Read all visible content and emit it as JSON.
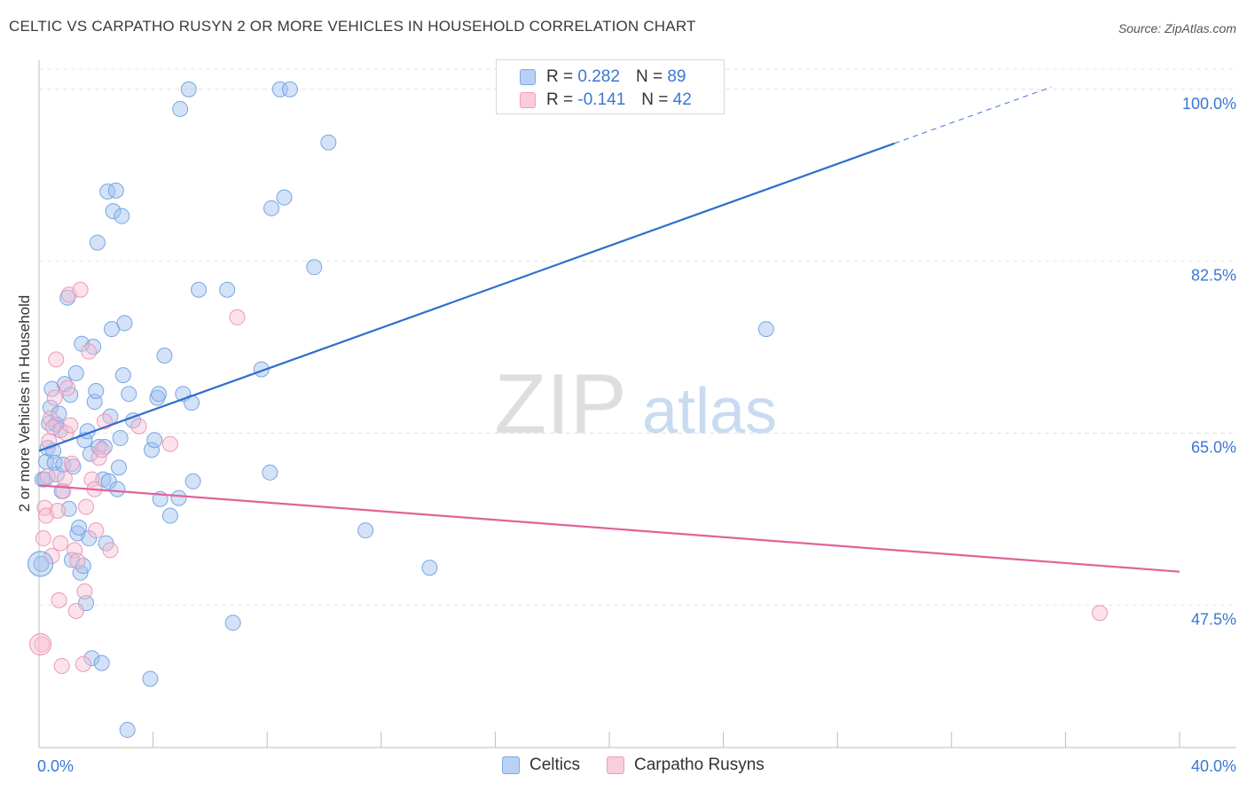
{
  "chart_data": {
    "type": "scatter",
    "title": "CELTIC VS CARPATHO RUSYN 2 OR MORE VEHICLES IN HOUSEHOLD CORRELATION CHART",
    "source": "Source: ZipAtlas.com",
    "xlabel": "",
    "ylabel": "2 or more Vehicles in Household",
    "xlim": [
      0,
      40
    ],
    "ylim": [
      33,
      103.5
    ],
    "x_tick_labels": [
      "0.0%",
      "40.0%"
    ],
    "y_ticks": [
      {
        "value": 100,
        "label": "100.0%"
      },
      {
        "value": 82.5,
        "label": "82.5%"
      },
      {
        "value": 65,
        "label": "65.0%"
      },
      {
        "value": 47.5,
        "label": "47.5%"
      }
    ],
    "watermark": {
      "zip": "ZIP",
      "atlas": "atlas"
    },
    "legend_stats": [
      {
        "r_label": "R =",
        "r_value": "0.282",
        "n_label": "N =",
        "n_value": "89"
      },
      {
        "r_label": "R =",
        "r_value": "-0.141",
        "n_label": "N =",
        "n_value": "42"
      }
    ],
    "series": [
      {
        "name": "Celtics",
        "color": "#9dbfee",
        "stroke": "#6d9ee0",
        "trend": {
          "x0": 0,
          "y0": 63.2,
          "x1": 30,
          "y1": 94.5,
          "dash_to_x": 35.5,
          "color": "#2f6fcc"
        },
        "points": [
          [
            0.08,
            51.7
          ],
          [
            0.12,
            60.3
          ],
          [
            0.2,
            60.3
          ],
          [
            0.25,
            62.1
          ],
          [
            0.3,
            63.5
          ],
          [
            0.35,
            66
          ],
          [
            0.4,
            67.6
          ],
          [
            0.45,
            69.5
          ],
          [
            0.5,
            63.2
          ],
          [
            0.55,
            62
          ],
          [
            0.6,
            65.9
          ],
          [
            0.62,
            60.8
          ],
          [
            0.7,
            67
          ],
          [
            0.75,
            65.3
          ],
          [
            0.8,
            59.1
          ],
          [
            0.85,
            61.8
          ],
          [
            0.9,
            70
          ],
          [
            1.0,
            78.8
          ],
          [
            1.05,
            57.3
          ],
          [
            1.1,
            68.9
          ],
          [
            1.15,
            52.1
          ],
          [
            1.2,
            61.6
          ],
          [
            1.3,
            71.1
          ],
          [
            1.35,
            54.8
          ],
          [
            1.4,
            55.4
          ],
          [
            1.45,
            50.8
          ],
          [
            1.5,
            74.1
          ],
          [
            1.55,
            51.5
          ],
          [
            1.6,
            64.3
          ],
          [
            1.65,
            47.7
          ],
          [
            1.7,
            65.2
          ],
          [
            1.75,
            54.3
          ],
          [
            1.8,
            62.9
          ],
          [
            1.85,
            42.1
          ],
          [
            1.9,
            73.8
          ],
          [
            1.95,
            68.2
          ],
          [
            2.0,
            69.3
          ],
          [
            2.05,
            84.4
          ],
          [
            2.1,
            63.6
          ],
          [
            2.2,
            41.6
          ],
          [
            2.25,
            60.3
          ],
          [
            2.3,
            63.6
          ],
          [
            2.35,
            53.8
          ],
          [
            2.4,
            89.6
          ],
          [
            2.45,
            60.1
          ],
          [
            2.5,
            66.7
          ],
          [
            2.55,
            75.6
          ],
          [
            2.6,
            87.6
          ],
          [
            2.7,
            89.7
          ],
          [
            2.75,
            59.3
          ],
          [
            2.8,
            61.5
          ],
          [
            2.85,
            64.5
          ],
          [
            2.9,
            87.1
          ],
          [
            2.95,
            70.9
          ],
          [
            3.0,
            76.2
          ],
          [
            3.1,
            34.8
          ],
          [
            3.15,
            69
          ],
          [
            3.3,
            66.3
          ],
          [
            3.9,
            40
          ],
          [
            3.95,
            63.3
          ],
          [
            4.05,
            64.3
          ],
          [
            4.15,
            68.6
          ],
          [
            4.2,
            69
          ],
          [
            4.25,
            58.3
          ],
          [
            4.4,
            72.9
          ],
          [
            4.6,
            56.6
          ],
          [
            4.9,
            58.4
          ],
          [
            4.95,
            98
          ],
          [
            5.05,
            69
          ],
          [
            5.25,
            100
          ],
          [
            5.35,
            68.1
          ],
          [
            5.4,
            60.1
          ],
          [
            5.6,
            79.6
          ],
          [
            6.6,
            79.6
          ],
          [
            6.8,
            45.7
          ],
          [
            7.8,
            71.5
          ],
          [
            8.1,
            61
          ],
          [
            8.15,
            87.9
          ],
          [
            8.45,
            100
          ],
          [
            8.6,
            89
          ],
          [
            8.8,
            100
          ],
          [
            9.65,
            81.9
          ],
          [
            10.15,
            94.6
          ],
          [
            11.45,
            55.1
          ],
          [
            13.7,
            51.3
          ],
          [
            25.5,
            75.6
          ]
        ]
      },
      {
        "name": "Carpatho Rusyns",
        "color": "#f6bfd3",
        "stroke": "#ec8fb2",
        "trend": {
          "x0": 0,
          "y0": 59.7,
          "x1": 40,
          "y1": 50.9,
          "color": "#e0649a"
        },
        "points": [
          [
            0.1,
            43.5
          ],
          [
            0.15,
            54.3
          ],
          [
            0.2,
            57.4
          ],
          [
            0.25,
            56.6
          ],
          [
            0.3,
            60.6
          ],
          [
            0.35,
            64.2
          ],
          [
            0.4,
            66.5
          ],
          [
            0.45,
            52.5
          ],
          [
            0.5,
            65.6
          ],
          [
            0.55,
            68.6
          ],
          [
            0.6,
            72.5
          ],
          [
            0.65,
            57.1
          ],
          [
            0.7,
            48
          ],
          [
            0.75,
            53.8
          ],
          [
            0.8,
            41.3
          ],
          [
            0.85,
            59.1
          ],
          [
            0.9,
            60.4
          ],
          [
            0.95,
            65
          ],
          [
            1.0,
            69.6
          ],
          [
            1.05,
            79.1
          ],
          [
            1.1,
            65.8
          ],
          [
            1.15,
            61.9
          ],
          [
            1.25,
            53.1
          ],
          [
            1.3,
            46.9
          ],
          [
            1.35,
            52
          ],
          [
            1.45,
            79.6
          ],
          [
            1.55,
            41.5
          ],
          [
            1.6,
            48.9
          ],
          [
            1.65,
            57.5
          ],
          [
            1.75,
            73.3
          ],
          [
            1.85,
            60.3
          ],
          [
            1.95,
            59.3
          ],
          [
            2.0,
            55.1
          ],
          [
            2.1,
            62.5
          ],
          [
            2.2,
            63.3
          ],
          [
            2.3,
            66.2
          ],
          [
            2.5,
            53.1
          ],
          [
            3.5,
            65.7
          ],
          [
            4.6,
            63.9
          ],
          [
            6.95,
            76.8
          ],
          [
            37.2,
            46.7
          ]
        ]
      }
    ]
  }
}
